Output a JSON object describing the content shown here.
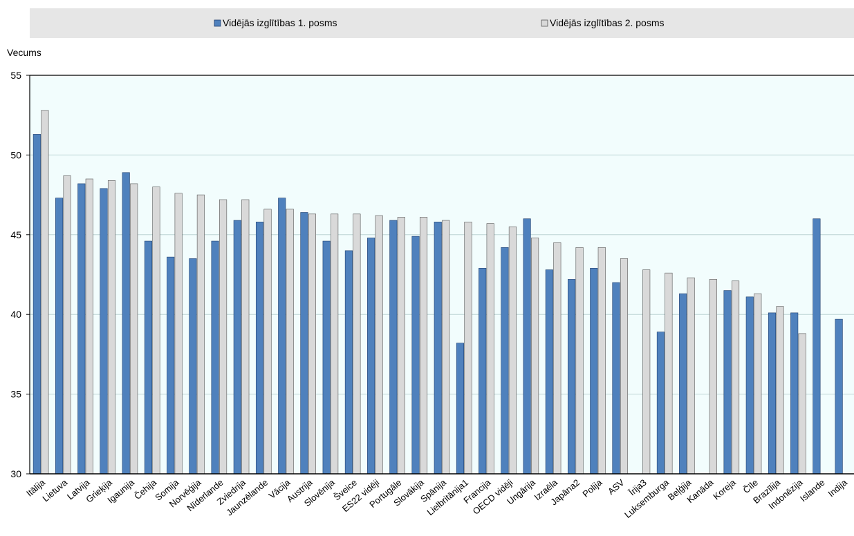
{
  "colors": {
    "series1": "#4f81bd",
    "series1_edge": "#1f3f6e",
    "series2": "#d9d9d9",
    "series2_edge": "#555555",
    "plot_bg": "#f2fdfd",
    "legend_bg": "#e6e6e6",
    "grid": "#bcd4d4"
  },
  "chart_data": {
    "type": "bar",
    "title": "",
    "xlabel": "",
    "ylabel": "Vecums",
    "ylim": [
      30,
      55
    ],
    "yticks": [
      30,
      35,
      40,
      45,
      50,
      55
    ],
    "grid": true,
    "legend_position": "top",
    "categories": [
      "Itālija",
      "Lietuva",
      "Latvija",
      "Grieķija",
      "Igaunija",
      "Čehija",
      "Somija",
      "Norvēģija",
      "Nīderlande",
      "Zviedrija",
      "Jaunzēlande",
      "Vācija",
      "Austrija",
      "Slovēnija",
      "Šveice",
      "ES22 vidēji",
      "Portugāle",
      "Slovākija",
      "Spānija",
      "Lielbritānija1",
      "Francija",
      "OECD vidēji",
      "Ungārija",
      "Izraēla",
      "Japāna2",
      "Polija",
      "ASV",
      "Īrija3",
      "Luksemburga",
      "Beļģija",
      "Kanāda",
      "Koreja",
      "Čīle",
      "Brazīlija",
      "Indonēzija",
      "Islande",
      "Indija"
    ],
    "series": [
      {
        "name": "Vidējās izglītības 1. posms",
        "values": [
          51.3,
          47.3,
          48.2,
          47.9,
          48.9,
          44.6,
          43.6,
          43.5,
          44.6,
          45.9,
          45.8,
          47.3,
          46.4,
          44.6,
          44.0,
          44.8,
          45.9,
          44.9,
          45.8,
          38.2,
          42.9,
          44.2,
          46.0,
          42.8,
          42.2,
          42.9,
          42.0,
          null,
          38.9,
          41.3,
          null,
          41.5,
          41.1,
          40.1,
          40.1,
          46.0,
          39.7
        ]
      },
      {
        "name": "Vidējās izglītības 2. posms",
        "values": [
          52.8,
          48.7,
          48.5,
          48.4,
          48.2,
          48.0,
          47.6,
          47.5,
          47.2,
          47.2,
          46.6,
          46.6,
          46.3,
          46.3,
          46.3,
          46.2,
          46.1,
          46.1,
          45.9,
          45.8,
          45.7,
          45.5,
          44.8,
          44.5,
          44.2,
          44.2,
          43.5,
          42.8,
          42.6,
          42.3,
          42.2,
          42.1,
          41.3,
          40.5,
          38.8,
          null,
          null
        ]
      }
    ]
  }
}
